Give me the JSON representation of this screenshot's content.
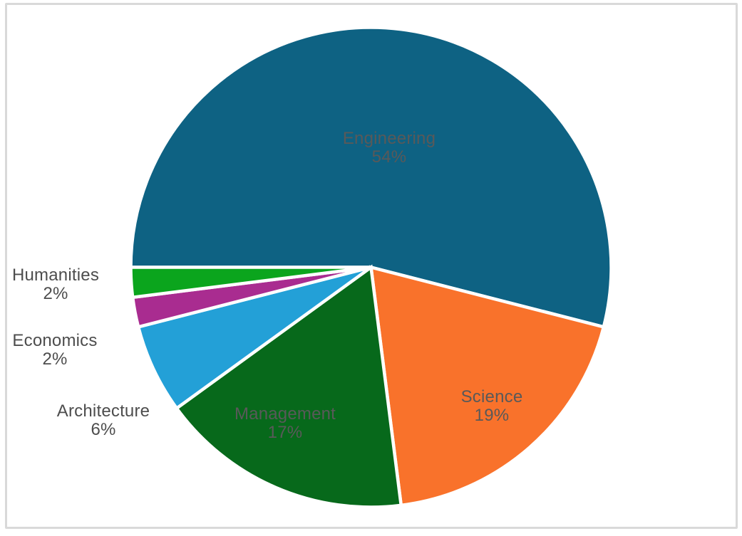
{
  "frame": {
    "border_color": "#D9D9D9",
    "background": "#FFFFFF"
  },
  "chart_data": {
    "type": "pie",
    "title": "",
    "unit": "percent",
    "start_angle_deg": 270,
    "direction": "clockwise",
    "legend": "none",
    "slice_border_color": "#FFFFFF",
    "label_text_color_inside": "#595959",
    "label_text_color_outside": "#4D4D4D",
    "categories": [
      "Engineering",
      "Science",
      "Management",
      "Architecture",
      "Economics",
      "Humanities"
    ],
    "values": [
      54,
      19,
      17,
      6,
      2,
      2
    ],
    "slices": [
      {
        "label": "Engineering",
        "value": 54,
        "pct_label": "54%",
        "color": "#0E6283",
        "label_placement": "inside"
      },
      {
        "label": "Science",
        "value": 19,
        "pct_label": "19%",
        "color": "#F9722B",
        "label_placement": "inside"
      },
      {
        "label": "Management",
        "value": 17,
        "pct_label": "17%",
        "color": "#07691B",
        "label_placement": "inside"
      },
      {
        "label": "Architecture",
        "value": 6,
        "pct_label": "6%",
        "color": "#23A0D7",
        "label_placement": "outside"
      },
      {
        "label": "Economics",
        "value": 2,
        "pct_label": "2%",
        "color": "#A92C90",
        "label_placement": "outside"
      },
      {
        "label": "Humanities",
        "value": 2,
        "pct_label": "2%",
        "color": "#0BA51D",
        "label_placement": "outside"
      }
    ]
  }
}
